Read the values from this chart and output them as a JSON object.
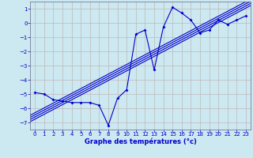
{
  "xlabel": "Graphe des températures (°c)",
  "xlim": [
    -0.5,
    23.5
  ],
  "ylim": [
    -7.5,
    1.5
  ],
  "yticks": [
    1,
    0,
    -1,
    -2,
    -3,
    -4,
    -5,
    -6,
    -7
  ],
  "xticks": [
    0,
    1,
    2,
    3,
    4,
    5,
    6,
    7,
    8,
    9,
    10,
    11,
    12,
    13,
    14,
    15,
    16,
    17,
    18,
    19,
    20,
    21,
    22,
    23
  ],
  "bg_color": "#cce8f0",
  "grid_color": "#c0b8b8",
  "line_color": "#0000cc",
  "data_x": [
    0,
    1,
    2,
    3,
    4,
    5,
    6,
    7,
    8,
    9,
    10,
    11,
    12,
    13,
    14,
    15,
    16,
    17,
    18,
    19,
    20,
    21,
    22,
    23
  ],
  "data_y": [
    -4.9,
    -5.0,
    -5.4,
    -5.5,
    -5.6,
    -5.6,
    -5.6,
    -5.8,
    -7.2,
    -5.3,
    -4.7,
    -0.8,
    -0.5,
    -3.3,
    -0.3,
    1.1,
    0.7,
    0.2,
    -0.7,
    -0.5,
    0.2,
    -0.1,
    0.2,
    0.5
  ],
  "reg_offsets": [
    -0.2,
    -0.05,
    0.1,
    0.25
  ],
  "reg_x0": -0.5,
  "reg_x1": 23.5
}
